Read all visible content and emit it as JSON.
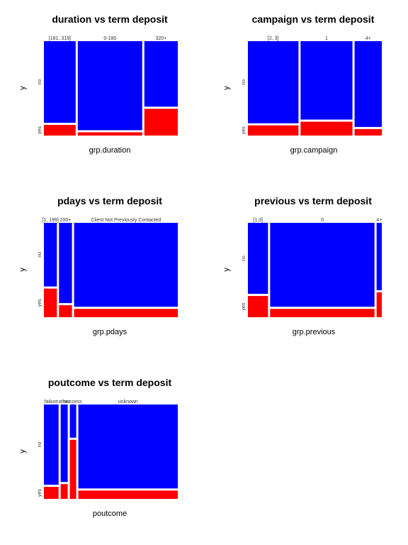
{
  "chart_data": [
    {
      "type": "mosaic",
      "title": "duration vs term deposit",
      "xlabel": "grp.duration",
      "ylabel": "y",
      "y_levels": [
        "no",
        "yes"
      ],
      "categories": [
        "[181, 319]",
        "0-180",
        "320+"
      ],
      "col_share": [
        0.245,
        0.497,
        0.258
      ],
      "yes_share": [
        0.115,
        0.035,
        0.29
      ]
    },
    {
      "type": "mosaic",
      "title": "campaign vs term deposit",
      "xlabel": "grp.campaign",
      "ylabel": "y",
      "y_levels": [
        "no",
        "yes"
      ],
      "categories": [
        "[2, 3]",
        "1",
        "4+"
      ],
      "col_share": [
        0.39,
        0.4,
        0.21
      ],
      "yes_share": [
        0.11,
        0.15,
        0.07
      ]
    },
    {
      "type": "mosaic",
      "title": "pdays vs term deposit",
      "xlabel": "grp.pdays",
      "ylabel": "y",
      "y_levels": [
        "no",
        "yes"
      ],
      "categories": [
        "[1, 199]",
        "200+",
        "Client Not Previously Contacted"
      ],
      "col_share": [
        0.1,
        0.1,
        0.8
      ],
      "yes_share": [
        0.31,
        0.13,
        0.09
      ]
    },
    {
      "type": "mosaic",
      "title": "previous vs term deposit",
      "xlabel": "grp.previous",
      "ylabel": "y",
      "y_levels": [
        "no",
        "yes"
      ],
      "categories": [
        "[1,3]",
        "0",
        "4+"
      ],
      "col_share": [
        0.155,
        0.805,
        0.04
      ],
      "yes_share": [
        0.23,
        0.09,
        0.27
      ]
    },
    {
      "type": "mosaic",
      "title": "poutcome vs term deposit",
      "xlabel": "poutcome",
      "ylabel": "y",
      "y_levels": [
        "no",
        "yes"
      ],
      "categories": [
        "failure",
        "other",
        "success",
        "unknown"
      ],
      "col_share": [
        0.115,
        0.055,
        0.05,
        0.78
      ],
      "yes_share": [
        0.13,
        0.16,
        0.64,
        0.09
      ]
    }
  ],
  "colors": {
    "no": "#0000ff",
    "yes": "#ff0000",
    "separator": "#ffffff",
    "text": "#000000"
  }
}
